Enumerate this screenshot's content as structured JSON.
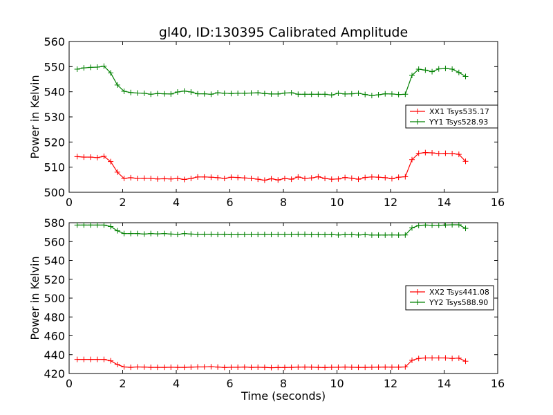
{
  "figure": {
    "title": "gl40, ID:130395 Calibrated Amplitude"
  },
  "chart_data": [
    {
      "type": "line",
      "xlabel": "",
      "ylabel": "Power in Kelvin",
      "xlim": [
        0,
        16
      ],
      "ylim": [
        500,
        560
      ],
      "xticks": [
        "0",
        "2",
        "4",
        "6",
        "8",
        "10",
        "12",
        "14",
        "16"
      ],
      "yticks": [
        "500",
        "510",
        "520",
        "530",
        "540",
        "550",
        "560"
      ],
      "grid": false,
      "legend_position": "center-right",
      "marker": "plus",
      "x": [
        0.3,
        0.55,
        0.8,
        1.05,
        1.3,
        1.55,
        1.8,
        2.05,
        2.3,
        2.55,
        2.8,
        3.05,
        3.3,
        3.55,
        3.8,
        4.05,
        4.3,
        4.55,
        4.8,
        5.05,
        5.3,
        5.55,
        5.8,
        6.05,
        6.3,
        6.55,
        6.8,
        7.05,
        7.3,
        7.55,
        7.8,
        8.05,
        8.3,
        8.55,
        8.8,
        9.05,
        9.3,
        9.55,
        9.8,
        10.05,
        10.3,
        10.55,
        10.8,
        11.05,
        11.3,
        11.55,
        11.8,
        12.05,
        12.3,
        12.55,
        12.8,
        13.05,
        13.3,
        13.55,
        13.8,
        14.05,
        14.3,
        14.55,
        14.8
      ],
      "series": [
        {
          "name": "XX1 Tsys535.17",
          "color": "#ff0000",
          "values": [
            514.2,
            514.0,
            514.0,
            513.8,
            514.3,
            512.2,
            508.0,
            505.5,
            505.8,
            505.5,
            505.6,
            505.5,
            505.3,
            505.4,
            505.3,
            505.5,
            505.1,
            505.5,
            506.1,
            506.1,
            506.0,
            505.8,
            505.5,
            506.0,
            505.9,
            505.7,
            505.5,
            505.2,
            504.8,
            505.4,
            504.9,
            505.5,
            505.2,
            506.1,
            505.5,
            505.7,
            506.2,
            505.5,
            505.2,
            505.3,
            505.9,
            505.6,
            505.2,
            505.9,
            506.1,
            506.0,
            505.8,
            505.4,
            506.0,
            506.2,
            513.0,
            515.5,
            515.8,
            515.7,
            515.4,
            515.5,
            515.4,
            515.1,
            512.3
          ]
        },
        {
          "name": "YY1 Tsys528.93",
          "color": "#008000",
          "values": [
            549.0,
            549.5,
            549.7,
            549.8,
            550.2,
            547.5,
            542.7,
            540.2,
            539.7,
            539.5,
            539.4,
            539.0,
            539.3,
            539.2,
            539.1,
            539.9,
            540.3,
            539.9,
            539.2,
            539.2,
            539.0,
            539.6,
            539.4,
            539.3,
            539.4,
            539.4,
            539.5,
            539.6,
            539.3,
            539.1,
            539.1,
            539.5,
            539.6,
            539.0,
            539.0,
            539.0,
            539.0,
            539.0,
            538.7,
            539.4,
            539.1,
            539.2,
            539.4,
            538.9,
            538.5,
            538.8,
            539.2,
            539.1,
            538.9,
            539.0,
            546.5,
            549.0,
            548.6,
            548.0,
            549.1,
            549.3,
            549.0,
            547.7,
            546.1
          ]
        }
      ]
    },
    {
      "type": "line",
      "xlabel": "Time (seconds)",
      "ylabel": "Power in Kelvin",
      "xlim": [
        0,
        16
      ],
      "ylim": [
        420,
        580
      ],
      "xticks": [
        "0",
        "2",
        "4",
        "6",
        "8",
        "10",
        "12",
        "14",
        "16"
      ],
      "yticks": [
        "420",
        "440",
        "460",
        "480",
        "500",
        "520",
        "540",
        "560",
        "580"
      ],
      "grid": false,
      "legend_position": "center-right",
      "marker": "plus",
      "x": [
        0.3,
        0.55,
        0.8,
        1.05,
        1.3,
        1.55,
        1.8,
        2.05,
        2.3,
        2.55,
        2.8,
        3.05,
        3.3,
        3.55,
        3.8,
        4.05,
        4.3,
        4.55,
        4.8,
        5.05,
        5.3,
        5.55,
        5.8,
        6.05,
        6.3,
        6.55,
        6.8,
        7.05,
        7.3,
        7.55,
        7.8,
        8.05,
        8.3,
        8.55,
        8.8,
        9.05,
        9.3,
        9.55,
        9.8,
        10.05,
        10.3,
        10.55,
        10.8,
        11.05,
        11.3,
        11.55,
        11.8,
        12.05,
        12.3,
        12.55,
        12.8,
        13.05,
        13.3,
        13.55,
        13.8,
        14.05,
        14.3,
        14.55,
        14.8
      ],
      "series": [
        {
          "name": "XX2 Tsys441.08",
          "color": "#ff0000",
          "values": [
            435.0,
            435.0,
            435.0,
            435.0,
            435.0,
            433.5,
            429.5,
            427.0,
            426.5,
            427.0,
            426.8,
            426.5,
            426.5,
            426.5,
            426.6,
            426.5,
            426.5,
            426.7,
            427.0,
            427.0,
            427.2,
            426.8,
            426.4,
            426.6,
            426.6,
            426.8,
            426.5,
            426.6,
            426.5,
            426.2,
            426.4,
            426.4,
            426.5,
            426.7,
            426.8,
            426.7,
            426.5,
            426.4,
            426.6,
            426.6,
            426.8,
            426.6,
            426.5,
            426.5,
            426.6,
            426.7,
            426.8,
            426.7,
            426.7,
            427.0,
            434.0,
            436.0,
            436.5,
            436.5,
            436.5,
            436.5,
            436.0,
            436.3,
            433.0
          ]
        },
        {
          "name": "YY2 Tsys588.90",
          "color": "#008000",
          "values": [
            577.5,
            577.5,
            577.5,
            577.5,
            577.5,
            576.0,
            571.5,
            568.5,
            568.5,
            568.5,
            568.0,
            568.5,
            568.2,
            568.5,
            568.0,
            567.5,
            568.5,
            568.0,
            567.5,
            567.8,
            567.8,
            567.5,
            567.8,
            567.2,
            567.2,
            567.5,
            567.5,
            567.5,
            567.6,
            567.5,
            567.5,
            567.5,
            567.5,
            567.8,
            567.8,
            567.3,
            567.3,
            567.3,
            567.4,
            567.0,
            567.3,
            567.3,
            567.0,
            567.3,
            566.9,
            566.9,
            566.9,
            567.0,
            566.9,
            567.0,
            574.5,
            577.0,
            577.5,
            577.3,
            577.3,
            577.5,
            577.8,
            577.8,
            574.0
          ]
        }
      ]
    }
  ]
}
